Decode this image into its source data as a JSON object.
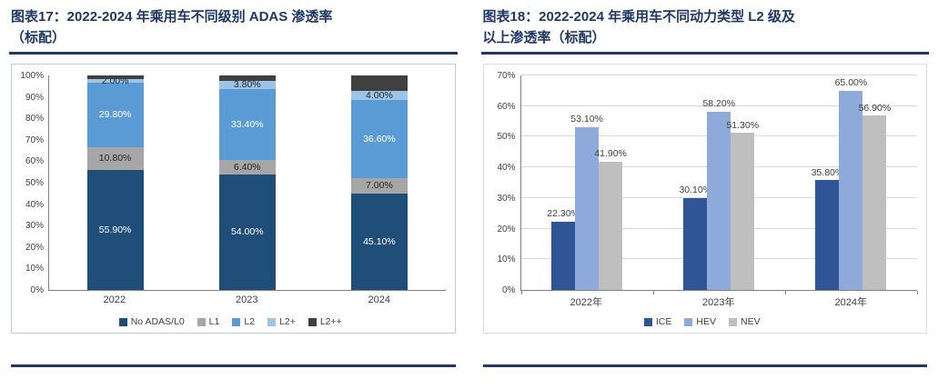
{
  "left_panel": {
    "title_line1": "图表17：2022-2024 年乘用车不同级别 ADAS 渗透率",
    "title_line2": "（标配）"
  },
  "right_panel": {
    "title_line1": "图表18：2022-2024 年乘用车不同动力类型 L2 级及",
    "title_line2": "以上渗透率（标配）"
  },
  "colors": {
    "title_navy": "#1F3864",
    "axis_gray": "#808080",
    "grid_gray": "#D9D9D9"
  },
  "chart_data": [
    {
      "type": "bar",
      "subtype": "stacked-100",
      "title": "2022-2024 年乘用车不同级别 ADAS 渗透率（标配）",
      "categories": [
        "2022",
        "2023",
        "2024"
      ],
      "series": [
        {
          "name": "No ADAS/L0",
          "color": "#1F4E79",
          "values": [
            55.9,
            54.0,
            45.1
          ],
          "labels": [
            "55.90%",
            "54.00%",
            "45.10%"
          ],
          "label_color": "#FFFFFF"
        },
        {
          "name": "L1",
          "color": "#A6A6A6",
          "values": [
            10.8,
            6.4,
            7.0
          ],
          "labels": [
            "10.80%",
            "6.40%",
            "7.00%"
          ],
          "label_color": "#262626"
        },
        {
          "name": "L2",
          "color": "#5B9BD5",
          "values": [
            29.8,
            33.4,
            36.6
          ],
          "labels": [
            "29.80%",
            "33.40%",
            "36.60%"
          ],
          "label_color": "#FFFFFF"
        },
        {
          "name": "L2+",
          "color": "#9DC3E6",
          "values": [
            2.0,
            3.8,
            4.0
          ],
          "labels": [
            "2.00%",
            "3.80%",
            "4.00%"
          ],
          "label_color": "#262626"
        },
        {
          "name": "L2++",
          "color": "#404040",
          "values": [
            1.5,
            2.4,
            7.3
          ],
          "labels": [
            "",
            "",
            ""
          ],
          "label_color": "#FFFFFF"
        }
      ],
      "ylim": [
        0,
        100
      ],
      "yticks": [
        "0%",
        "10%",
        "20%",
        "30%",
        "40%",
        "50%",
        "60%",
        "70%",
        "80%",
        "90%",
        "100%"
      ],
      "grid": false,
      "legend_position": "bottom"
    },
    {
      "type": "bar",
      "subtype": "grouped",
      "title": "2022-2024 年乘用车不同动力类型 L2 级及以上渗透率（标配）",
      "categories": [
        "2022年",
        "2023年",
        "2024年"
      ],
      "series": [
        {
          "name": "ICE",
          "color": "#2F5597",
          "values": [
            22.3,
            30.1,
            35.8
          ],
          "labels": [
            "22.30%",
            "30.10%",
            "35.80%"
          ]
        },
        {
          "name": "HEV",
          "color": "#8EAADB",
          "values": [
            53.1,
            58.2,
            65.0
          ],
          "labels": [
            "53.10%",
            "58.20%",
            "65.00%"
          ]
        },
        {
          "name": "NEV",
          "color": "#BFBFBF",
          "values": [
            41.9,
            51.3,
            56.9
          ],
          "labels": [
            "41.90%",
            "51.30%",
            "56.90%"
          ]
        }
      ],
      "ylim": [
        0,
        70
      ],
      "yticks": [
        "0%",
        "10%",
        "20%",
        "30%",
        "40%",
        "50%",
        "60%",
        "70%"
      ],
      "grid": true,
      "legend_position": "bottom"
    }
  ]
}
